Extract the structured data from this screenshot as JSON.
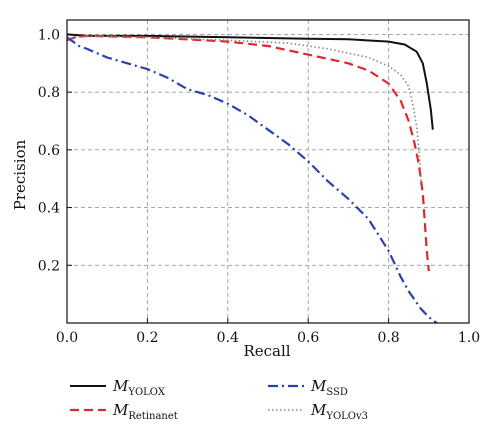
{
  "chart_data": {
    "type": "line",
    "title": "",
    "xlabel": "Recall",
    "ylabel": "Precision",
    "xlim": [
      0,
      1.0
    ],
    "ylim": [
      0,
      1.05
    ],
    "xticks": [
      "0.0",
      "0.2",
      "0.4",
      "0.6",
      "0.8",
      "1.0"
    ],
    "yticks": [
      "0.2",
      "0.4",
      "0.6",
      "0.8",
      "1.0"
    ],
    "grid": true,
    "legend_position": "bottom",
    "series": [
      {
        "name_main": "M",
        "name_sub": "YOLOX",
        "color": "#111111",
        "style": "solid",
        "points": [
          [
            0.0,
            1.0
          ],
          [
            0.05,
            0.995
          ],
          [
            0.2,
            0.995
          ],
          [
            0.4,
            0.99
          ],
          [
            0.6,
            0.985
          ],
          [
            0.7,
            0.983
          ],
          [
            0.8,
            0.975
          ],
          [
            0.84,
            0.965
          ],
          [
            0.87,
            0.94
          ],
          [
            0.885,
            0.9
          ],
          [
            0.895,
            0.83
          ],
          [
            0.905,
            0.74
          ],
          [
            0.91,
            0.67
          ]
        ]
      },
      {
        "name_main": "M",
        "name_sub": "Retinanet",
        "color": "#e0282a",
        "style": "dashed",
        "points": [
          [
            0.0,
            0.98
          ],
          [
            0.02,
            0.99
          ],
          [
            0.05,
            0.995
          ],
          [
            0.2,
            0.99
          ],
          [
            0.4,
            0.975
          ],
          [
            0.5,
            0.96
          ],
          [
            0.6,
            0.93
          ],
          [
            0.7,
            0.9
          ],
          [
            0.75,
            0.875
          ],
          [
            0.8,
            0.83
          ],
          [
            0.83,
            0.77
          ],
          [
            0.85,
            0.7
          ],
          [
            0.865,
            0.62
          ],
          [
            0.875,
            0.55
          ],
          [
            0.885,
            0.45
          ],
          [
            0.89,
            0.35
          ],
          [
            0.895,
            0.25
          ],
          [
            0.9,
            0.18
          ]
        ]
      },
      {
        "name_main": "M",
        "name_sub": "SSD",
        "color": "#2a3fb0",
        "style": "dashdot",
        "points": [
          [
            0.0,
            0.99
          ],
          [
            0.01,
            0.98
          ],
          [
            0.03,
            0.96
          ],
          [
            0.05,
            0.95
          ],
          [
            0.1,
            0.92
          ],
          [
            0.15,
            0.9
          ],
          [
            0.2,
            0.88
          ],
          [
            0.25,
            0.85
          ],
          [
            0.3,
            0.81
          ],
          [
            0.35,
            0.79
          ],
          [
            0.4,
            0.76
          ],
          [
            0.45,
            0.72
          ],
          [
            0.5,
            0.67
          ],
          [
            0.55,
            0.62
          ],
          [
            0.6,
            0.56
          ],
          [
            0.65,
            0.49
          ],
          [
            0.7,
            0.43
          ],
          [
            0.75,
            0.36
          ],
          [
            0.8,
            0.25
          ],
          [
            0.83,
            0.16
          ],
          [
            0.85,
            0.11
          ],
          [
            0.88,
            0.05
          ],
          [
            0.9,
            0.02
          ],
          [
            0.92,
            0.0
          ]
        ]
      },
      {
        "name_main": "M",
        "name_sub": "YOLOv3",
        "color": "#888888",
        "style": "dotted",
        "points": [
          [
            0.0,
            0.985
          ],
          [
            0.05,
            0.995
          ],
          [
            0.2,
            0.99
          ],
          [
            0.4,
            0.98
          ],
          [
            0.55,
            0.97
          ],
          [
            0.65,
            0.95
          ],
          [
            0.75,
            0.92
          ],
          [
            0.8,
            0.89
          ],
          [
            0.83,
            0.86
          ],
          [
            0.85,
            0.82
          ],
          [
            0.86,
            0.76
          ],
          [
            0.87,
            0.68
          ],
          [
            0.875,
            0.6
          ],
          [
            0.88,
            0.52
          ],
          [
            0.88,
            0.47
          ]
        ]
      }
    ]
  }
}
